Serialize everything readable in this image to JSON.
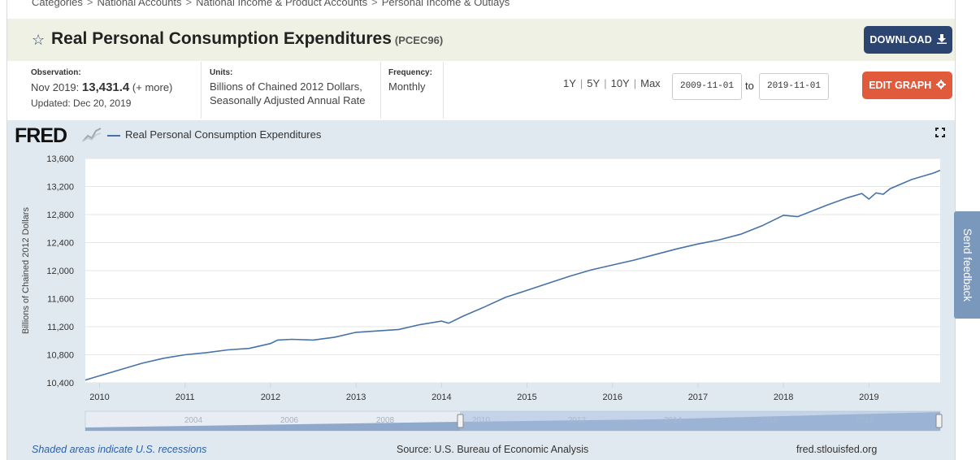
{
  "breadcrumb": [
    "Categories",
    "National Accounts",
    "National Income & Product Accounts",
    "Personal Income & Outlays"
  ],
  "breadcrumb_sep": ">",
  "header": {
    "title": "Real Personal Consumption Expenditures",
    "series_id": "(PCEC96)",
    "download_label": "DOWNLOAD"
  },
  "observation": {
    "label": "Observation:",
    "date": "Nov 2019:",
    "value": "13,431.4",
    "more": "(+ more)",
    "updated": "Updated: Dec 20, 2019"
  },
  "units": {
    "label": "Units:",
    "line1": "Billions of Chained 2012 Dollars,",
    "line2": "Seasonally Adjusted Annual Rate"
  },
  "frequency": {
    "label": "Frequency:",
    "value": "Monthly"
  },
  "range_links": [
    "1Y",
    "5Y",
    "10Y",
    "Max"
  ],
  "range_sep": "|",
  "date_range": {
    "start": "2009-11-01",
    "to_label": "to",
    "end": "2019-11-01"
  },
  "edit_label": "EDIT GRAPH",
  "chart": {
    "logo": "FRED",
    "legend_label": "Real Personal Consumption Expenditures"
  },
  "footer": {
    "recession_note": "Shaded areas indicate U.S. recessions",
    "source": "Source: U.S. Bureau of Economic Analysis",
    "site": "fred.stlouisfed.org"
  },
  "feedback_label": "Send feedback",
  "colors": {
    "series_line": "#4572a7",
    "download_button": "#2c4470",
    "edit_button": "#e05a3b",
    "title_band": "#eff1e4",
    "chart_band": "#e1e9f0",
    "feedback_tab": "#7a98bc"
  },
  "chart_data": {
    "type": "line",
    "title": "Real Personal Consumption Expenditures",
    "ylabel": "Billions of Chained 2012 Dollars",
    "xlabel": "",
    "ylim": [
      10400,
      13600
    ],
    "xlim": [
      2009.8333,
      2019.8333
    ],
    "yticks": [
      10400,
      10800,
      11200,
      11600,
      12000,
      12400,
      12800,
      13200,
      13600
    ],
    "ytick_labels": [
      "10,400",
      "10,800",
      "11,200",
      "11,600",
      "12,000",
      "12,400",
      "12,800",
      "13,200",
      "13,600"
    ],
    "xticks": [
      2010,
      2011,
      2012,
      2013,
      2014,
      2015,
      2016,
      2017,
      2018,
      2019
    ],
    "xtick_labels": [
      "2010",
      "2011",
      "2012",
      "2013",
      "2014",
      "2015",
      "2016",
      "2017",
      "2018",
      "2019"
    ],
    "navigator_labels": [
      "2004",
      "2006",
      "2008",
      "2010",
      "2012",
      "2014",
      "2016",
      "2018"
    ],
    "series": [
      {
        "name": "Real Personal Consumption Expenditures",
        "x": [
          2009.8333,
          2010.0,
          2010.25,
          2010.5,
          2010.75,
          2011.0,
          2011.25,
          2011.5,
          2011.75,
          2012.0,
          2012.083,
          2012.25,
          2012.5,
          2012.75,
          2013.0,
          2013.25,
          2013.5,
          2013.75,
          2014.0,
          2014.083,
          2014.25,
          2014.5,
          2014.75,
          2015.0,
          2015.25,
          2015.5,
          2015.75,
          2016.0,
          2016.25,
          2016.5,
          2016.75,
          2017.0,
          2017.25,
          2017.5,
          2017.75,
          2018.0,
          2018.167,
          2018.5,
          2018.75,
          2018.917,
          2019.0,
          2019.083,
          2019.167,
          2019.25,
          2019.5,
          2019.75,
          2019.8333
        ],
        "y": [
          10440,
          10500,
          10590,
          10680,
          10750,
          10800,
          10830,
          10870,
          10890,
          10960,
          11010,
          11020,
          11010,
          11050,
          11120,
          11140,
          11160,
          11230,
          11280,
          11250,
          11350,
          11480,
          11620,
          11720,
          11820,
          11920,
          12010,
          12080,
          12150,
          12230,
          12310,
          12380,
          12440,
          12520,
          12640,
          12790,
          12770,
          12930,
          13040,
          13100,
          13020,
          13110,
          13090,
          13170,
          13300,
          13390,
          13431
        ]
      }
    ]
  }
}
